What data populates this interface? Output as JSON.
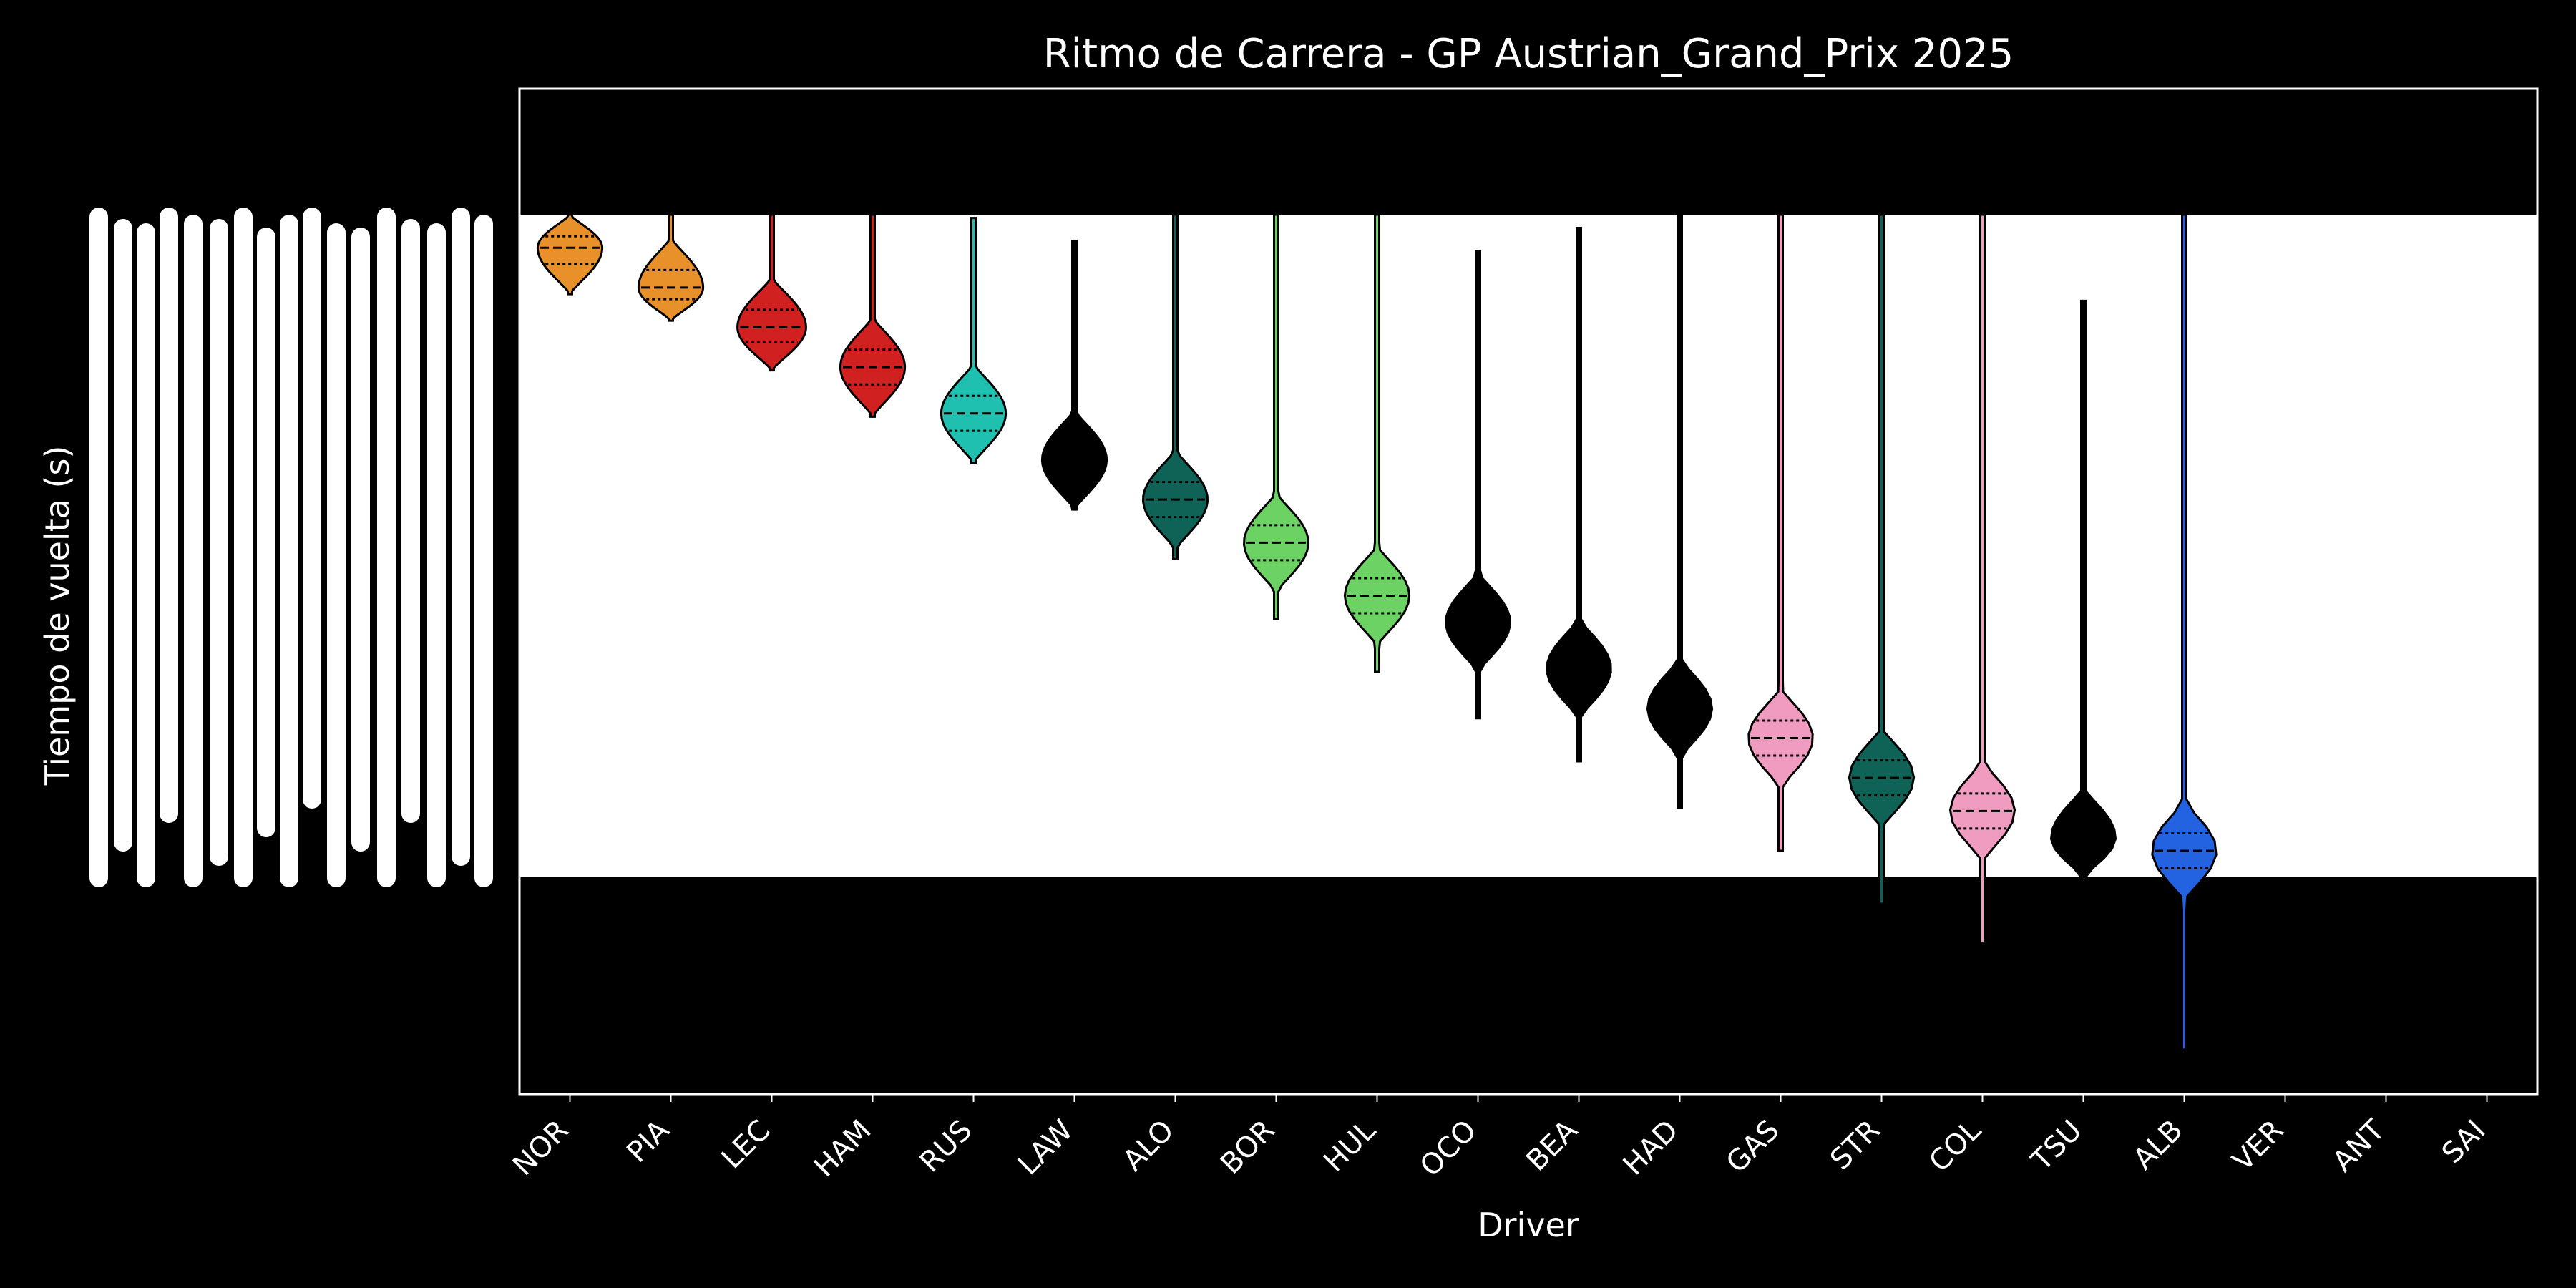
{
  "chart_data": {
    "type": "violin",
    "title": "Ritmo de Carrera - GP Austrian_Grand_Prix 2025",
    "xlabel": "Driver",
    "ylabel": "Tiempo de vuelta (s)",
    "categories": [
      "NOR",
      "PIA",
      "LEC",
      "HAM",
      "RUS",
      "LAW",
      "ALO",
      "BOR",
      "HUL",
      "OCO",
      "BEA",
      "HAD",
      "GAS",
      "STR",
      "COL",
      "TSU",
      "ALB",
      "VER",
      "ANT",
      "SAI"
    ],
    "background_band": "white band across the middle of the plot, black above and below",
    "ytick_labels_note": "y-axis tick labels are overlapping, illegible white text",
    "ytick_labels_legible_fragments": [
      "0 days 00:01:",
      "0 days 00:01:"
    ],
    "violins": [
      {
        "driver": "NOR",
        "color": "#E8902A",
        "center": 0.05,
        "top": 0.0,
        "bottom": 0.12,
        "width": 0.8
      },
      {
        "driver": "PIA",
        "color": "#E8902A",
        "center": 0.11,
        "top": 0.0,
        "bottom": 0.16,
        "width": 0.8
      },
      {
        "driver": "LEC",
        "color": "#D02020",
        "center": 0.17,
        "top": 0.0,
        "bottom": 0.235,
        "width": 0.85
      },
      {
        "driver": "HAM",
        "color": "#D02020",
        "center": 0.23,
        "top": 0.0,
        "bottom": 0.305,
        "width": 0.8
      },
      {
        "driver": "RUS",
        "color": "#20C0B0",
        "center": 0.3,
        "top": 0.005,
        "bottom": 0.375,
        "width": 0.8
      },
      {
        "driver": "LAW",
        "color": "#000000",
        "center": 0.37,
        "top": 0.04,
        "bottom": 0.445,
        "width": 0.8
      },
      {
        "driver": "ALO",
        "color": "#0E6356",
        "center": 0.43,
        "top": 0.0,
        "bottom": 0.52,
        "width": 0.8
      },
      {
        "driver": "BOR",
        "color": "#6CD263",
        "center": 0.495,
        "top": 0.0,
        "bottom": 0.61,
        "width": 0.8
      },
      {
        "driver": "HUL",
        "color": "#6CD263",
        "center": 0.575,
        "top": 0.0,
        "bottom": 0.69,
        "width": 0.8
      },
      {
        "driver": "OCO",
        "color": "#000000",
        "center": 0.615,
        "top": 0.055,
        "bottom": 0.76,
        "width": 0.8
      },
      {
        "driver": "BEA",
        "color": "#000000",
        "center": 0.685,
        "top": 0.02,
        "bottom": 0.825,
        "width": 0.8
      },
      {
        "driver": "HAD",
        "color": "#000000",
        "center": 0.745,
        "top": 0.0,
        "bottom": 0.895,
        "width": 0.8
      },
      {
        "driver": "GAS",
        "color": "#F09BC0",
        "center": 0.79,
        "top": 0.0,
        "bottom": 0.96,
        "width": 0.8
      },
      {
        "driver": "STR",
        "color": "#0E6356",
        "center": 0.85,
        "top": 0.0,
        "bottom": 1.04,
        "width": 0.8
      },
      {
        "driver": "COL",
        "color": "#F09BC0",
        "center": 0.9,
        "top": 0.0,
        "bottom": 1.1,
        "width": 0.8
      },
      {
        "driver": "TSU",
        "color": "#000000",
        "center": 0.94,
        "top": 0.13,
        "bottom": 1.0,
        "width": 0.8
      },
      {
        "driver": "ALB",
        "color": "#2362E0",
        "center": 0.96,
        "top": 0.0,
        "bottom": 1.26,
        "width": 0.8
      }
    ]
  }
}
